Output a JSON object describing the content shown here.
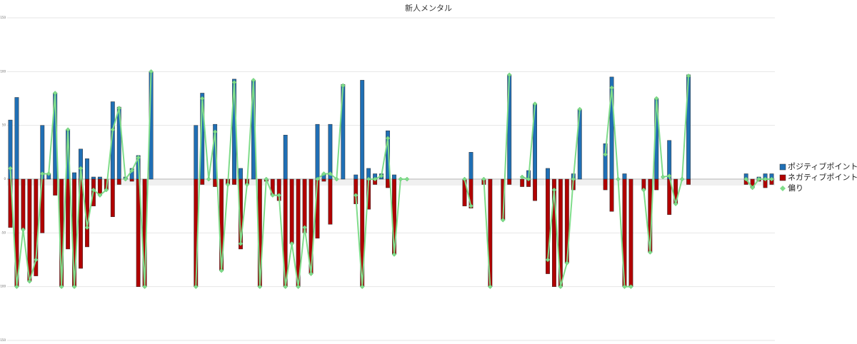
{
  "chart_data": {
    "type": "bar",
    "title": "新人メンタル",
    "categories": [
      null,
      null,
      null,
      null,
      null,
      null,
      null,
      null,
      null,
      null,
      null,
      null,
      null,
      null,
      null,
      null,
      null,
      null,
      null,
      null,
      null,
      null,
      null,
      null,
      null,
      null,
      null,
      null,
      null,
      null,
      null,
      null,
      null,
      null,
      null,
      null,
      null,
      null,
      null,
      null,
      null,
      null,
      null,
      null,
      null,
      null,
      null,
      null,
      null,
      null,
      null,
      null,
      null,
      null,
      null,
      null,
      null,
      null,
      null,
      null,
      null,
      null,
      null,
      null,
      null,
      null,
      null,
      null,
      null,
      null,
      null,
      null,
      null,
      null,
      null,
      null,
      null,
      null,
      null,
      null,
      null,
      null,
      null,
      null,
      null,
      null,
      null,
      null,
      null,
      null,
      null,
      null,
      null,
      null,
      null,
      null,
      null,
      null,
      null,
      null,
      null,
      null,
      null,
      null,
      null,
      null,
      null,
      null,
      null,
      null,
      null,
      null,
      null,
      null,
      null,
      null,
      null,
      null,
      null,
      null
    ],
    "series": [
      {
        "name": "ポジティブポイント",
        "color": "#1f6fb5",
        "values": [
          55,
          76,
          0,
          0,
          0,
          50,
          5,
          80,
          0,
          46,
          6,
          28,
          19,
          2,
          2,
          0,
          72,
          67,
          2,
          10,
          22,
          0,
          100,
          null,
          null,
          null,
          null,
          null,
          null,
          50,
          80,
          0,
          51,
          0,
          0,
          93,
          10,
          0,
          92,
          0,
          0,
          0,
          0,
          41,
          0,
          0,
          0,
          0,
          51,
          5,
          51,
          0,
          88,
          null,
          4,
          92,
          10,
          5,
          5,
          45,
          4,
          0,
          0,
          null,
          null,
          null,
          null,
          null,
          null,
          null,
          null,
          0,
          25,
          null,
          0,
          0,
          null,
          0,
          97,
          null,
          0,
          8,
          70,
          null,
          10,
          0,
          0,
          0,
          5,
          65,
          null,
          null,
          null,
          33,
          95,
          0,
          5,
          0,
          null,
          0,
          0,
          75,
          0,
          36,
          0,
          0,
          97,
          null,
          null,
          null,
          null,
          null,
          null,
          null,
          null,
          5,
          0,
          2,
          5,
          5
        ]
      },
      {
        "name": "ネガティブポイント",
        "color": "#b00000",
        "values": [
          -45,
          -100,
          -47,
          -95,
          -90,
          -50,
          0,
          -15,
          -100,
          -65,
          -100,
          -83,
          -63,
          -25,
          -15,
          -10,
          -35,
          -5,
          0,
          -2,
          -100,
          -100,
          0,
          null,
          null,
          null,
          null,
          null,
          null,
          -100,
          -5,
          0,
          -7,
          -85,
          -5,
          -5,
          -65,
          -5,
          0,
          -100,
          -2,
          -15,
          -20,
          -100,
          -60,
          -100,
          -50,
          -88,
          -55,
          -2,
          -42,
          0,
          0,
          null,
          -23,
          -100,
          -28,
          -5,
          0,
          -8,
          -70,
          0,
          0,
          null,
          null,
          null,
          null,
          null,
          null,
          null,
          null,
          -25,
          -27,
          null,
          -5,
          -100,
          null,
          -38,
          -5,
          null,
          -7,
          -7,
          -20,
          null,
          -88,
          -100,
          -100,
          -78,
          -10,
          0,
          null,
          null,
          null,
          -10,
          -30,
          0,
          -100,
          -100,
          null,
          -10,
          -68,
          -10,
          0,
          -33,
          -23,
          0,
          -5,
          null,
          null,
          null,
          null,
          null,
          null,
          null,
          null,
          -5,
          -8,
          -2,
          -8,
          -5
        ]
      },
      {
        "name": "偏り",
        "type": "line",
        "color": "#7fdc8a",
        "values": [
          10,
          -100,
          -47,
          -95,
          -75,
          5,
          5,
          80,
          -100,
          46,
          -100,
          10,
          -45,
          -10,
          -15,
          -10,
          46,
          66,
          0,
          8,
          20,
          -100,
          100,
          null,
          null,
          null,
          null,
          null,
          null,
          -100,
          75,
          0,
          44,
          -85,
          -5,
          90,
          -60,
          -5,
          92,
          -100,
          0,
          -15,
          -15,
          -100,
          -60,
          -100,
          -45,
          -88,
          0,
          5,
          5,
          0,
          87,
          null,
          -15,
          -100,
          0,
          0,
          3,
          38,
          -70,
          0,
          0,
          null,
          null,
          null,
          null,
          null,
          null,
          null,
          null,
          0,
          -25,
          null,
          0,
          -100,
          null,
          -38,
          97,
          null,
          2,
          0,
          70,
          null,
          -75,
          -10,
          -100,
          -78,
          0,
          65,
          null,
          null,
          null,
          23,
          85,
          0,
          -100,
          -100,
          null,
          -10,
          -68,
          75,
          2,
          3,
          -23,
          0,
          96,
          null,
          null,
          null,
          null,
          null,
          null,
          null,
          null,
          0,
          -8,
          0,
          0,
          0
        ]
      }
    ],
    "ylim": [
      -150,
      150
    ],
    "yticks": [
      -150,
      -100,
      -50,
      0,
      50,
      100,
      150
    ],
    "grid": true,
    "legend": "right"
  }
}
